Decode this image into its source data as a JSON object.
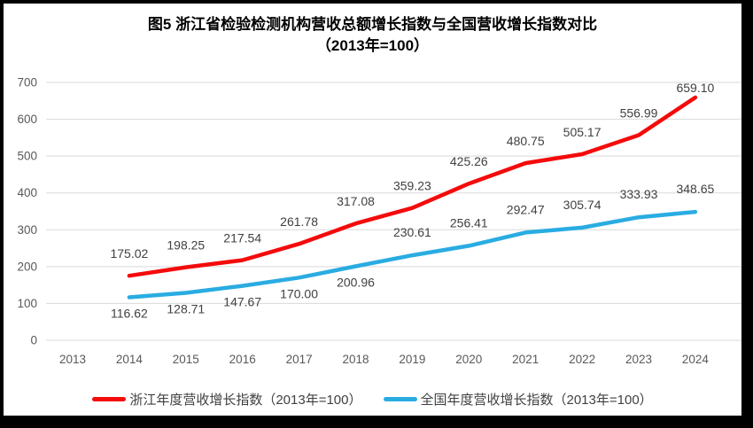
{
  "title": {
    "line1": "图5  浙江省检验检测机构营收总额增长指数与全国营收增长指数对比",
    "line2": "（2013年=100）"
  },
  "chart_data": {
    "type": "line",
    "title": "图5 浙江省检验检测机构营收总额增长指数与全国营收增长指数对比（2013年=100）",
    "categories": [
      "2013",
      "2014",
      "2015",
      "2016",
      "2017",
      "2018",
      "2019",
      "2020",
      "2021",
      "2022",
      "2023",
      "2024"
    ],
    "series": [
      {
        "name": "浙江年度营收增长指数（2013年=100）",
        "color": "#F40B0B",
        "values": [
          null,
          175.02,
          198.25,
          217.54,
          261.78,
          317.08,
          359.23,
          425.26,
          480.75,
          505.17,
          556.99,
          659.1
        ]
      },
      {
        "name": "全国年度营收增长指数（2013年=100）",
        "color": "#29ACE2",
        "values": [
          null,
          116.62,
          128.71,
          147.67,
          170.0,
          200.96,
          230.61,
          256.41,
          292.47,
          305.74,
          333.93,
          348.65
        ]
      }
    ],
    "xlabel": "",
    "ylabel": "",
    "ylim": [
      0,
      700
    ],
    "y_ticks": [
      0,
      100,
      200,
      300,
      400,
      500,
      600,
      700
    ],
    "grid": true,
    "legend_position": "bottom",
    "data_labels": true,
    "label_decimals": 2,
    "styles": {
      "gridline_color": "#D9D9D9",
      "tick_label_color": "#595959",
      "data_label_color": "#404040",
      "background": "#FFFFFF",
      "frame_color": "#000000"
    }
  }
}
